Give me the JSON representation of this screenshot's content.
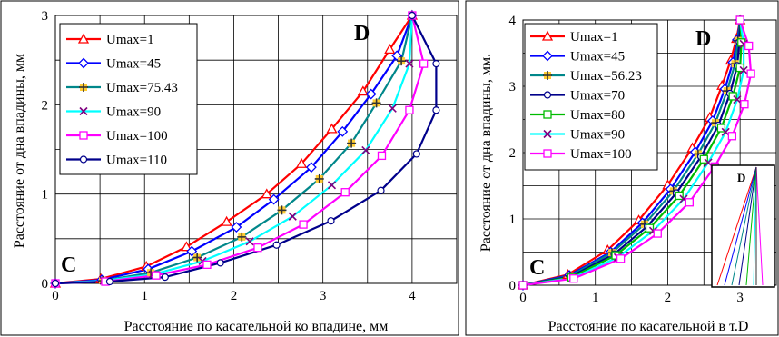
{
  "chart_data": [
    {
      "type": "line",
      "title": "",
      "xlabel": "Расстояние по касательной ко впадине, мм",
      "ylabel": "Расстояние от дна впадины, мм",
      "xlim": [
        0,
        4.5
      ],
      "ylim": [
        0,
        3
      ],
      "x_ticks": [
        0,
        1,
        2,
        3,
        4
      ],
      "y_ticks": [
        0,
        1,
        2,
        3
      ],
      "grid": true,
      "legend_position": "top-left",
      "point_labels": {
        "start": "C",
        "end": "D"
      },
      "series": [
        {
          "name": "Umax=1",
          "color": "#ff0000",
          "marker": "triangle",
          "points": [
            [
              0,
              0
            ],
            [
              0.51,
              0.05
            ],
            [
              1.02,
              0.19
            ],
            [
              1.47,
              0.41
            ],
            [
              1.92,
              0.69
            ],
            [
              2.37,
              1.0
            ],
            [
              2.76,
              1.34
            ],
            [
              3.1,
              1.73
            ],
            [
              3.45,
              2.15
            ],
            [
              3.75,
              2.62
            ],
            [
              4.0,
              3.0
            ]
          ]
        },
        {
          "name": "Umax=45",
          "color": "#0000ff",
          "marker": "diamond",
          "points": [
            [
              0,
              0
            ],
            [
              0.52,
              0.04
            ],
            [
              1.04,
              0.16
            ],
            [
              1.53,
              0.36
            ],
            [
              2.03,
              0.63
            ],
            [
              2.45,
              0.94
            ],
            [
              2.87,
              1.3
            ],
            [
              3.22,
              1.7
            ],
            [
              3.54,
              2.12
            ],
            [
              3.83,
              2.55
            ],
            [
              4.0,
              3.0
            ]
          ]
        },
        {
          "name": "Umax=75.43",
          "color": "#00878a",
          "marker": "plus",
          "points": [
            [
              0,
              0
            ],
            [
              0.53,
              0.03
            ],
            [
              1.07,
              0.12
            ],
            [
              1.59,
              0.29
            ],
            [
              2.09,
              0.52
            ],
            [
              2.54,
              0.82
            ],
            [
              2.96,
              1.17
            ],
            [
              3.32,
              1.57
            ],
            [
              3.6,
              2.02
            ],
            [
              3.88,
              2.49
            ],
            [
              4.0,
              3.0
            ]
          ]
        },
        {
          "name": "Umax=90",
          "color": "#00ffff",
          "marker": "cross",
          "points": [
            [
              0,
              0
            ],
            [
              0.54,
              0.03
            ],
            [
              1.09,
              0.1
            ],
            [
              1.65,
              0.25
            ],
            [
              2.18,
              0.47
            ],
            [
              2.66,
              0.75
            ],
            [
              3.1,
              1.1
            ],
            [
              3.48,
              1.49
            ],
            [
              3.78,
              1.96
            ],
            [
              3.97,
              2.46
            ],
            [
              4.0,
              3.0
            ]
          ]
        },
        {
          "name": "Umax=100",
          "color": "#ff00ff",
          "marker": "square",
          "points": [
            [
              0,
              0
            ],
            [
              0.56,
              0.02
            ],
            [
              1.13,
              0.09
            ],
            [
              1.7,
              0.21
            ],
            [
              2.27,
              0.4
            ],
            [
              2.78,
              0.66
            ],
            [
              3.25,
              1.02
            ],
            [
              3.66,
              1.43
            ],
            [
              3.97,
              1.94
            ],
            [
              4.13,
              2.46
            ],
            [
              4.0,
              3.0
            ]
          ]
        },
        {
          "name": "Umax=110",
          "color": "#00008b",
          "marker": "circle",
          "points": [
            [
              0,
              0
            ],
            [
              0.61,
              0.02
            ],
            [
              1.23,
              0.07
            ],
            [
              1.85,
              0.23
            ],
            [
              2.48,
              0.43
            ],
            [
              3.09,
              0.7
            ],
            [
              3.65,
              1.04
            ],
            [
              4.05,
              1.45
            ],
            [
              4.27,
              1.94
            ],
            [
              4.27,
              2.46
            ],
            [
              4.0,
              3.0
            ]
          ]
        }
      ]
    },
    {
      "type": "line",
      "title": "",
      "xlabel": "Расстояние по касательной в т.D",
      "ylabel": "Расстояние от дна впадины, мм.",
      "xlim": [
        0,
        3.5
      ],
      "ylim": [
        0,
        4
      ],
      "x_ticks": [
        0,
        1,
        2,
        3
      ],
      "y_ticks": [
        0,
        1,
        2,
        3,
        4
      ],
      "grid": true,
      "legend_position": "top-left",
      "point_labels": {
        "start": "C",
        "end": "D"
      },
      "series": [
        {
          "name": "Umax=1",
          "color": "#ff0000",
          "marker": "triangle",
          "points": [
            [
              0,
              0
            ],
            [
              0.62,
              0.16
            ],
            [
              1.17,
              0.53
            ],
            [
              1.6,
              0.98
            ],
            [
              2.0,
              1.51
            ],
            [
              2.34,
              2.07
            ],
            [
              2.58,
              2.53
            ],
            [
              2.75,
              3.01
            ],
            [
              2.87,
              3.39
            ],
            [
              2.95,
              3.72
            ],
            [
              3.0,
              4.0
            ]
          ]
        },
        {
          "name": "Umax=45",
          "color": "#0000ff",
          "marker": "diamond",
          "points": [
            [
              0,
              0
            ],
            [
              0.64,
              0.15
            ],
            [
              1.21,
              0.5
            ],
            [
              1.65,
              0.94
            ],
            [
              2.04,
              1.45
            ],
            [
              2.38,
              2.01
            ],
            [
              2.62,
              2.48
            ],
            [
              2.79,
              2.96
            ],
            [
              2.9,
              3.36
            ],
            [
              2.96,
              3.7
            ],
            [
              3.0,
              4.0
            ]
          ]
        },
        {
          "name": "Umax=56.23",
          "color": "#00878a",
          "marker": "plus",
          "points": [
            [
              0,
              0
            ],
            [
              0.65,
              0.14
            ],
            [
              1.23,
              0.49
            ],
            [
              1.68,
              0.92
            ],
            [
              2.08,
              1.42
            ],
            [
              2.42,
              1.98
            ],
            [
              2.66,
              2.45
            ],
            [
              2.82,
              2.93
            ],
            [
              2.93,
              3.34
            ],
            [
              2.97,
              3.69
            ],
            [
              3.0,
              4.0
            ]
          ]
        },
        {
          "name": "Umax=70",
          "color": "#00008b",
          "marker": "circle",
          "points": [
            [
              0,
              0
            ],
            [
              0.66,
              0.13
            ],
            [
              1.26,
              0.47
            ],
            [
              1.72,
              0.89
            ],
            [
              2.12,
              1.39
            ],
            [
              2.46,
              1.94
            ],
            [
              2.7,
              2.41
            ],
            [
              2.86,
              2.89
            ],
            [
              2.96,
              3.31
            ],
            [
              2.99,
              3.67
            ],
            [
              3.0,
              4.0
            ]
          ]
        },
        {
          "name": "Umax=80",
          "color": "#00bb00",
          "marker": "square",
          "points": [
            [
              0,
              0
            ],
            [
              0.67,
              0.12
            ],
            [
              1.28,
              0.45
            ],
            [
              1.75,
              0.86
            ],
            [
              2.16,
              1.35
            ],
            [
              2.5,
              1.9
            ],
            [
              2.74,
              2.37
            ],
            [
              2.9,
              2.85
            ],
            [
              3.0,
              3.28
            ],
            [
              3.02,
              3.66
            ],
            [
              3.0,
              4.0
            ]
          ]
        },
        {
          "name": "Umax=90",
          "color": "#00ffff",
          "marker": "cross",
          "points": [
            [
              0,
              0
            ],
            [
              0.69,
              0.11
            ],
            [
              1.31,
              0.42
            ],
            [
              1.8,
              0.82
            ],
            [
              2.22,
              1.3
            ],
            [
              2.56,
              1.85
            ],
            [
              2.8,
              2.31
            ],
            [
              2.96,
              2.8
            ],
            [
              3.05,
              3.24
            ],
            [
              3.05,
              3.64
            ],
            [
              3.0,
              4.0
            ]
          ]
        },
        {
          "name": "Umax=100",
          "color": "#ff00ff",
          "marker": "square",
          "points": [
            [
              0,
              0
            ],
            [
              0.7,
              0.1
            ],
            [
              1.35,
              0.4
            ],
            [
              1.86,
              0.78
            ],
            [
              2.3,
              1.25
            ],
            [
              2.65,
              1.79
            ],
            [
              2.89,
              2.25
            ],
            [
              3.06,
              2.73
            ],
            [
              3.15,
              3.19
            ],
            [
              3.12,
              3.61
            ],
            [
              3.0,
              4.0
            ]
          ]
        }
      ],
      "inset": {
        "point_label": "D"
      }
    }
  ]
}
